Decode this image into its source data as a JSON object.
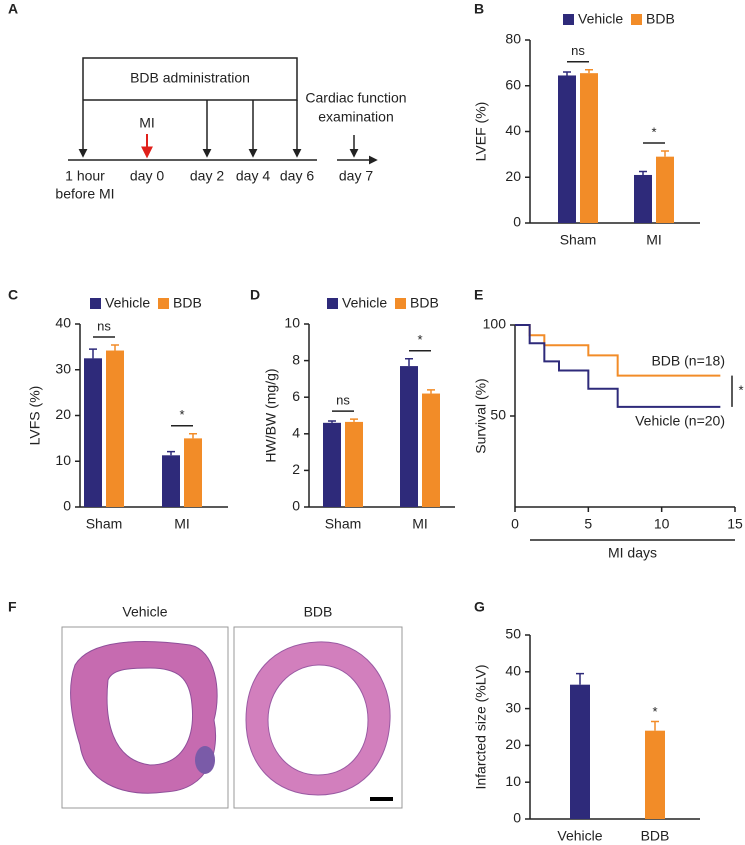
{
  "panel_labels": [
    "A",
    "B",
    "C",
    "D",
    "E",
    "F",
    "G"
  ],
  "timeline": {
    "box_label": "BDB administration",
    "mi_label": "MI",
    "end_label": [
      "Cardiac function",
      "examination"
    ],
    "time_points": [
      [
        "1 hour",
        "before MI"
      ],
      [
        "day 0"
      ],
      [
        "day 2"
      ],
      [
        "day 4"
      ],
      [
        "day 6"
      ],
      [
        "day 7"
      ]
    ]
  },
  "histology": {
    "labels": [
      "Vehicle",
      "BDB"
    ]
  },
  "chart_data": [
    {
      "type": "bar",
      "ylabel": "LVEF (%)",
      "categories": [
        "Sham",
        "MI"
      ],
      "series": [
        {
          "name": "Vehicle",
          "color": "#2e2a7a",
          "values": [
            64.5,
            21
          ],
          "errors": [
            1.5,
            1.5
          ]
        },
        {
          "name": "BDB",
          "color": "#f28c28",
          "values": [
            65.5,
            29
          ],
          "errors": [
            1.5,
            2.5
          ]
        }
      ],
      "significance": [
        "ns",
        "*"
      ],
      "ylim": [
        0,
        80
      ],
      "yticks": [
        0,
        20,
        40,
        60,
        80
      ]
    },
    {
      "type": "bar",
      "ylabel": "LVFS (%)",
      "categories": [
        "Sham",
        "MI"
      ],
      "series": [
        {
          "name": "Vehicle",
          "color": "#2e2a7a",
          "values": [
            32.5,
            11.3
          ],
          "errors": [
            2,
            0.8
          ]
        },
        {
          "name": "BDB",
          "color": "#f28c28",
          "values": [
            34.2,
            15
          ],
          "errors": [
            1.2,
            1
          ]
        }
      ],
      "significance": [
        "ns",
        "*"
      ],
      "ylim": [
        0,
        40
      ],
      "yticks": [
        0,
        10,
        20,
        30,
        40
      ]
    },
    {
      "type": "bar",
      "ylabel": "HW/BW (mg/g)",
      "categories": [
        "Sham",
        "MI"
      ],
      "series": [
        {
          "name": "Vehicle",
          "color": "#2e2a7a",
          "values": [
            4.6,
            7.7
          ],
          "errors": [
            0.1,
            0.4
          ]
        },
        {
          "name": "BDB",
          "color": "#f28c28",
          "values": [
            4.65,
            6.2
          ],
          "errors": [
            0.15,
            0.2
          ]
        }
      ],
      "significance": [
        "ns",
        "*"
      ],
      "ylim": [
        0,
        10
      ],
      "yticks": [
        0,
        2,
        4,
        6,
        8,
        10
      ]
    },
    {
      "type": "line",
      "ylabel": "Survival (%)",
      "xlabel": "MI days",
      "series": [
        {
          "name": "BDB (n=18)",
          "color": "#f28c28",
          "x": [
            0,
            1,
            2,
            5,
            7,
            14
          ],
          "values": [
            100,
            94.4,
            88.9,
            83.3,
            72.2,
            72.2
          ]
        },
        {
          "name": "Vehicle (n=20)",
          "color": "#2e2a7a",
          "x": [
            0,
            1,
            2,
            3,
            5,
            7,
            14
          ],
          "values": [
            100,
            90,
            80,
            75,
            65,
            55,
            55
          ]
        }
      ],
      "significance": "*",
      "xlim": [
        0,
        15
      ],
      "xticks": [
        0,
        5,
        10,
        15
      ],
      "ylim": [
        0,
        100
      ],
      "yticks": [
        50,
        100
      ]
    },
    {
      "type": "bar",
      "ylabel": "Infarcted size (%LV)",
      "categories": [
        "Vehicle",
        "BDB"
      ],
      "values": [
        36.5,
        24
      ],
      "errors": [
        3,
        2.5
      ],
      "colors": [
        "#2e2a7a",
        "#f28c28"
      ],
      "significance": [
        null,
        "*"
      ],
      "ylim": [
        0,
        50
      ],
      "yticks": [
        0,
        10,
        20,
        30,
        40,
        50
      ]
    }
  ]
}
